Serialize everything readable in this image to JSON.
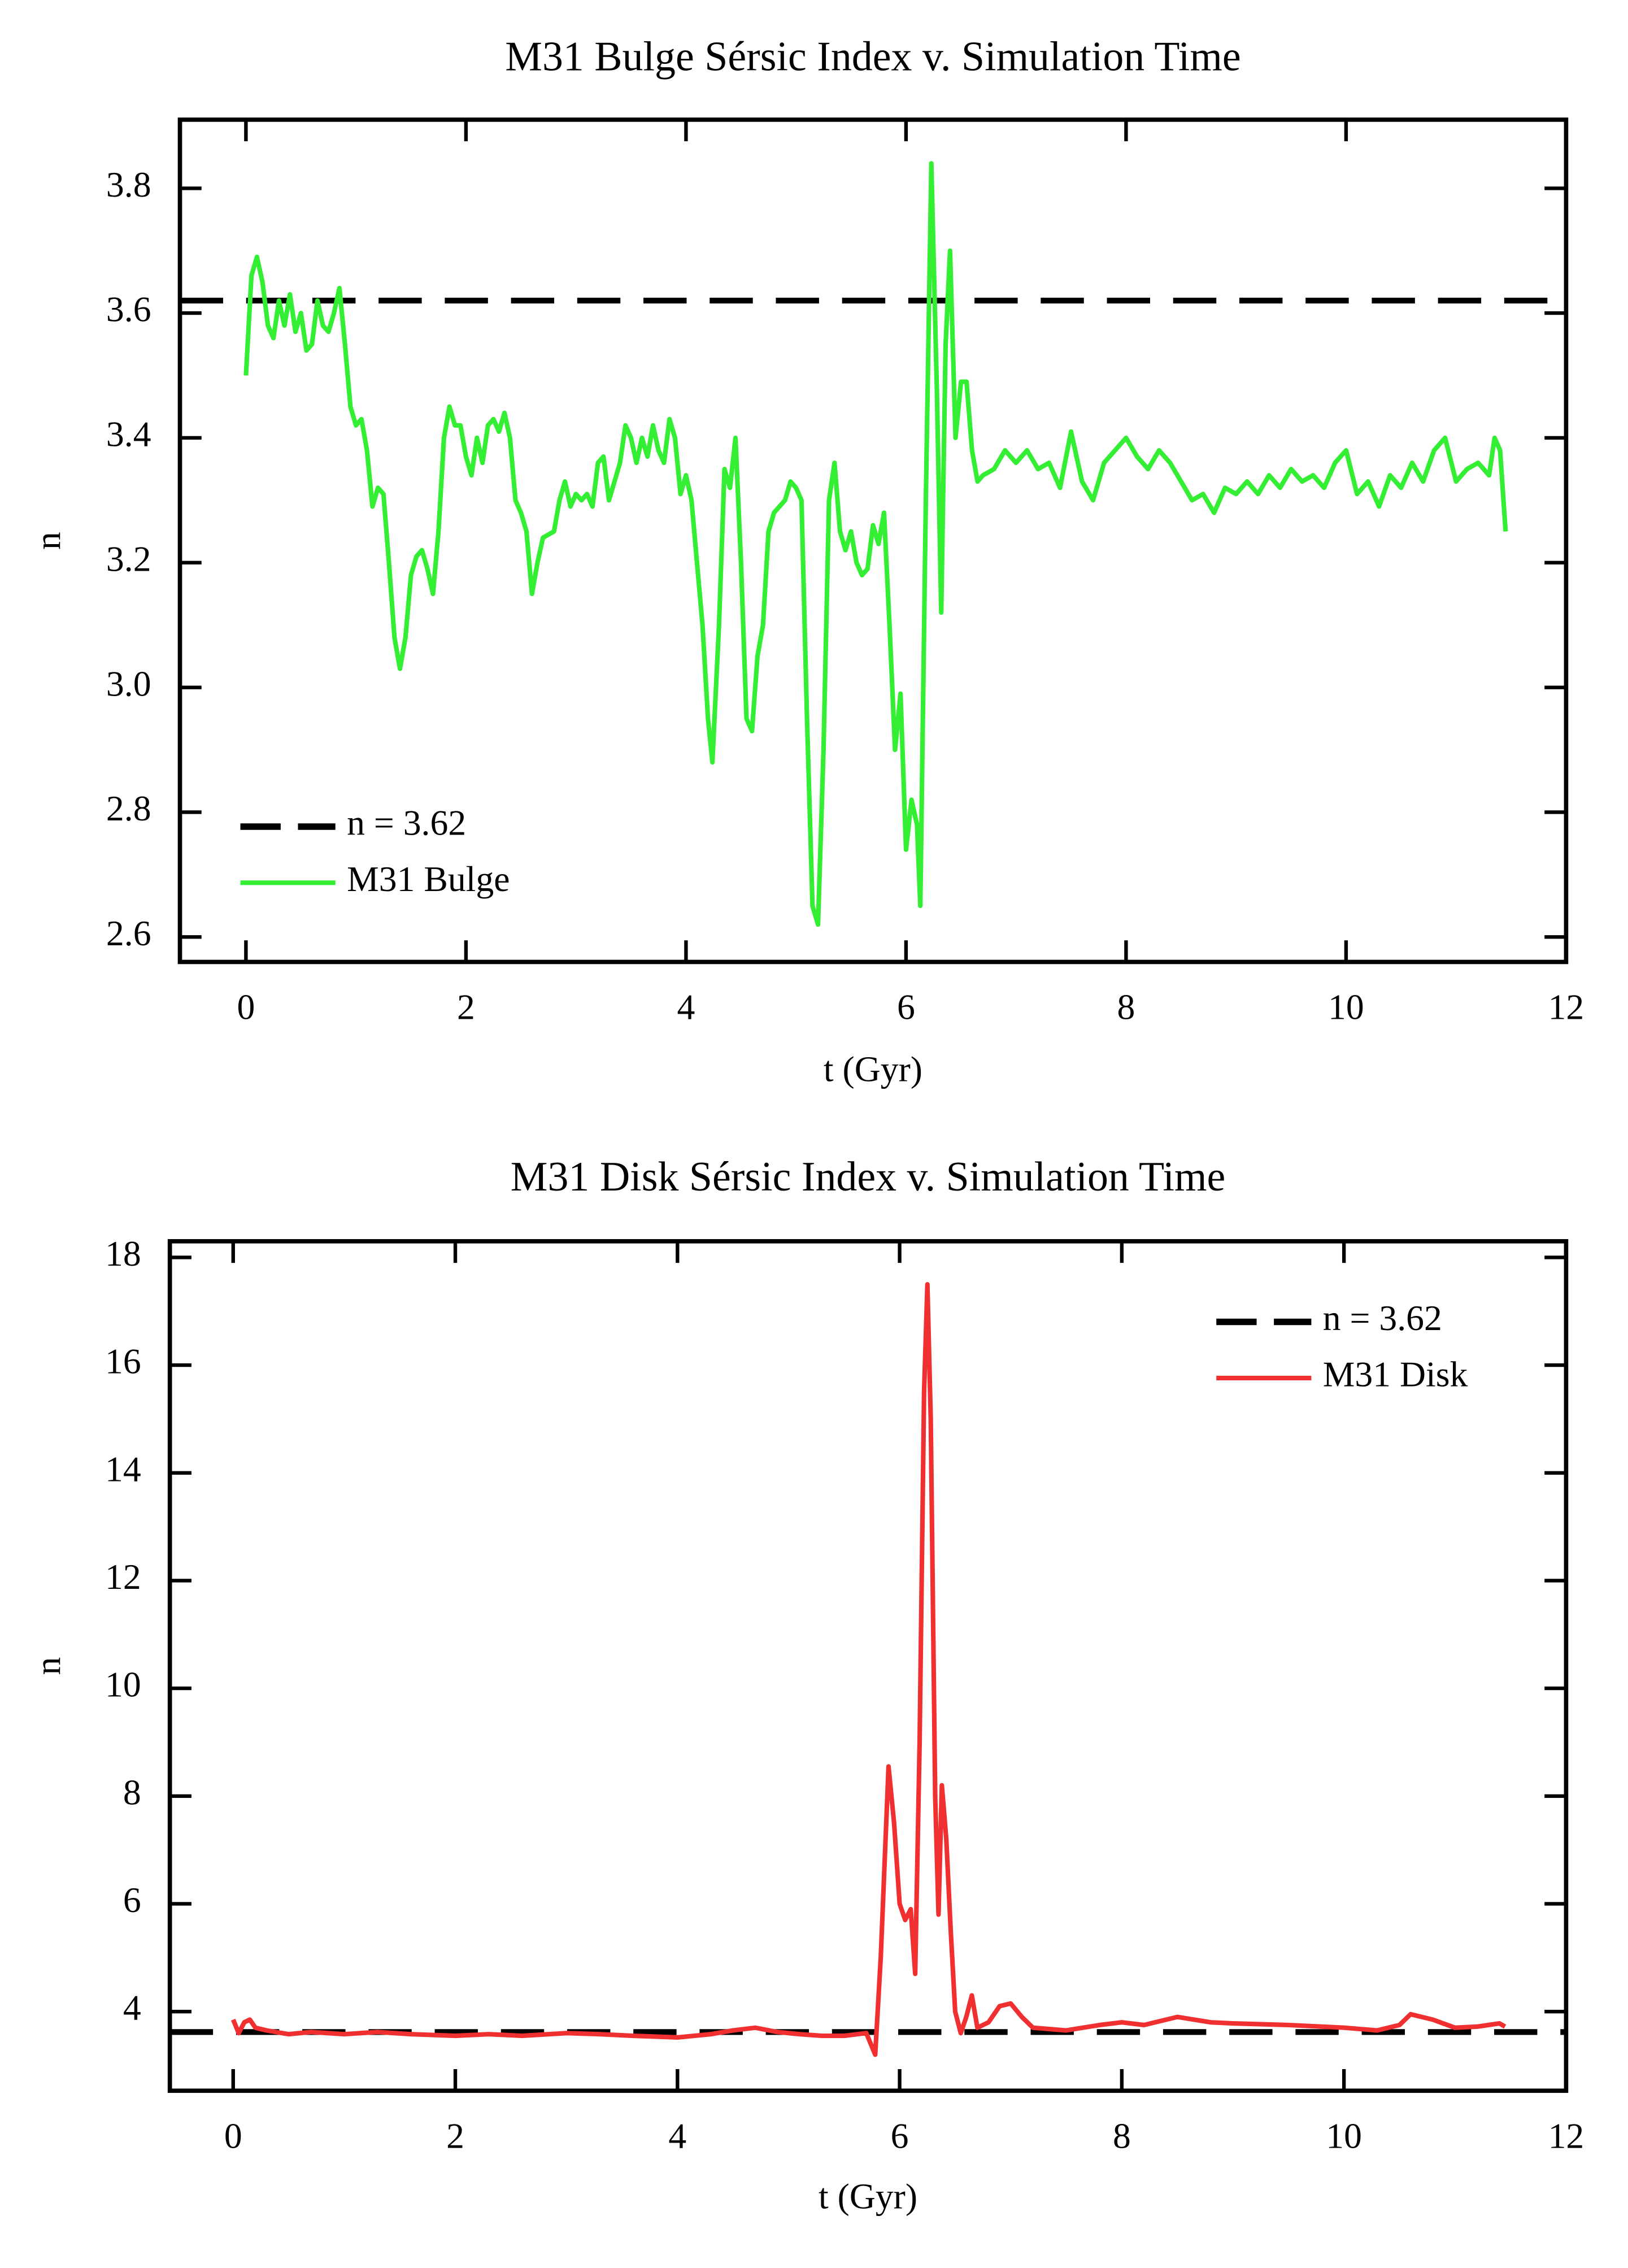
{
  "chart_data": [
    {
      "type": "line",
      "title": "M31 Bulge Sérsic Index v. Simulation Time",
      "xlabel": "t (Gyr)",
      "ylabel": "n",
      "xlim": [
        -0.6,
        12
      ],
      "ylim": [
        2.56,
        3.91
      ],
      "xticks": [
        0,
        2,
        4,
        6,
        8,
        10,
        12
      ],
      "yticks": [
        2.6,
        2.8,
        {
          "value": 3,
          "label": "3.0"
        },
        3.2,
        3.4,
        3.6,
        3.8
      ],
      "legend": "lower left",
      "hlines": [
        {
          "name": "n = 3.62",
          "value": 3.62,
          "color": "#000000",
          "dashed": true
        }
      ],
      "x": [
        0,
        0.05,
        0.1,
        0.15,
        0.2,
        0.25,
        0.3,
        0.35,
        0.4,
        0.45,
        0.5,
        0.55,
        0.6,
        0.65,
        0.7,
        0.75,
        0.8,
        0.85,
        0.9,
        0.95,
        1.0,
        1.05,
        1.1,
        1.15,
        1.2,
        1.25,
        1.3,
        1.35,
        1.4,
        1.45,
        1.5,
        1.55,
        1.6,
        1.65,
        1.7,
        1.75,
        1.8,
        1.85,
        1.9,
        1.95,
        2.0,
        2.05,
        2.1,
        2.15,
        2.2,
        2.25,
        2.3,
        2.35,
        2.4,
        2.45,
        2.5,
        2.55,
        2.6,
        2.65,
        2.7,
        2.8,
        2.85,
        2.9,
        2.95,
        3.0,
        3.05,
        3.1,
        3.15,
        3.2,
        3.25,
        3.3,
        3.35,
        3.4,
        3.45,
        3.5,
        3.55,
        3.6,
        3.65,
        3.7,
        3.75,
        3.8,
        3.85,
        3.9,
        3.95,
        4.0,
        4.05,
        4.1,
        4.15,
        4.2,
        4.24,
        4.3,
        4.35,
        4.4,
        4.45,
        4.5,
        4.55,
        4.6,
        4.65,
        4.7,
        4.75,
        4.8,
        4.9,
        4.95,
        5.0,
        5.05,
        5.1,
        5.15,
        5.2,
        5.25,
        5.3,
        5.35,
        5.4,
        5.45,
        5.5,
        5.55,
        5.6,
        5.65,
        5.7,
        5.75,
        5.8,
        5.85,
        5.9,
        5.95,
        6.0,
        6.05,
        6.1,
        6.13,
        6.18,
        6.23,
        6.28,
        6.32,
        6.36,
        6.4,
        6.45,
        6.5,
        6.55,
        6.6,
        6.65,
        6.7,
        6.8,
        6.9,
        7.0,
        7.1,
        7.2,
        7.3,
        7.4,
        7.5,
        7.6,
        7.7,
        7.8,
        7.9,
        8.0,
        8.1,
        8.2,
        8.3,
        8.4,
        8.5,
        8.6,
        8.7,
        8.8,
        8.9,
        9.0,
        9.1,
        9.2,
        9.3,
        9.4,
        9.5,
        9.6,
        9.7,
        9.8,
        9.9,
        10.0,
        10.1,
        10.2,
        10.3,
        10.4,
        10.5,
        10.6,
        10.7,
        10.8,
        10.9,
        11.0,
        11.1,
        11.2,
        11.3,
        11.35,
        11.4,
        11.45
      ],
      "series": [
        {
          "name": "M31 Bulge",
          "color": "#33ee33",
          "values": [
            3.5,
            3.66,
            3.69,
            3.65,
            3.58,
            3.56,
            3.62,
            3.58,
            3.63,
            3.57,
            3.6,
            3.54,
            3.55,
            3.62,
            3.58,
            3.57,
            3.6,
            3.64,
            3.55,
            3.45,
            3.42,
            3.43,
            3.38,
            3.29,
            3.32,
            3.31,
            3.2,
            3.08,
            3.03,
            3.08,
            3.18,
            3.21,
            3.22,
            3.19,
            3.15,
            3.25,
            3.4,
            3.45,
            3.42,
            3.42,
            3.37,
            3.34,
            3.4,
            3.36,
            3.42,
            3.43,
            3.41,
            3.44,
            3.4,
            3.3,
            3.28,
            3.25,
            3.15,
            3.2,
            3.24,
            3.25,
            3.3,
            3.33,
            3.29,
            3.31,
            3.3,
            3.31,
            3.29,
            3.36,
            3.37,
            3.3,
            3.33,
            3.36,
            3.42,
            3.4,
            3.36,
            3.4,
            3.37,
            3.42,
            3.38,
            3.36,
            3.43,
            3.4,
            3.31,
            3.34,
            3.3,
            3.2,
            3.1,
            2.95,
            2.88,
            3.1,
            3.35,
            3.32,
            3.4,
            3.2,
            2.95,
            2.93,
            3.05,
            3.1,
            3.25,
            3.28,
            3.3,
            3.33,
            3.32,
            3.3,
            2.95,
            2.65,
            2.62,
            2.9,
            3.3,
            3.36,
            3.25,
            3.22,
            3.25,
            3.2,
            3.18,
            3.19,
            3.26,
            3.23,
            3.28,
            3.1,
            2.9,
            2.99,
            2.74,
            2.82,
            2.78,
            2.65,
            3.3,
            3.84,
            3.48,
            3.12,
            3.55,
            3.7,
            3.4,
            3.49,
            3.49,
            3.38,
            3.33,
            3.34,
            3.35,
            3.38,
            3.36,
            3.38,
            3.35,
            3.36,
            3.32,
            3.41,
            3.33,
            3.3,
            3.36,
            3.38,
            3.4,
            3.37,
            3.35,
            3.38,
            3.36,
            3.33,
            3.3,
            3.31,
            3.28,
            3.32,
            3.31,
            3.33,
            3.31,
            3.34,
            3.32,
            3.35,
            3.33,
            3.34,
            3.32,
            3.36,
            3.38,
            3.31,
            3.33,
            3.29,
            3.34,
            3.32,
            3.36,
            3.33,
            3.38,
            3.4,
            3.33,
            3.35,
            3.36,
            3.34,
            3.4,
            3.38,
            3.25
          ]
        }
      ]
    },
    {
      "type": "line",
      "title": "M31 Disk Sérsic Index v. Simulation Time",
      "xlabel": "t (Gyr)",
      "ylabel": "n",
      "xlim": [
        -0.57,
        12
      ],
      "ylim": [
        2.53,
        18.3
      ],
      "xticks": [
        0,
        2,
        4,
        6,
        8,
        10,
        12
      ],
      "yticks": [
        4,
        6,
        8,
        10,
        12,
        14,
        16,
        18
      ],
      "legend": "upper right",
      "hlines": [
        {
          "name": "n = 3.62",
          "value": 3.62,
          "color": "#000000",
          "dashed": true
        }
      ],
      "x": [
        0,
        0.05,
        0.1,
        0.15,
        0.2,
        0.3,
        0.5,
        0.7,
        1.0,
        1.3,
        1.6,
        2.0,
        2.3,
        2.6,
        3.0,
        3.3,
        3.6,
        4.0,
        4.3,
        4.5,
        4.7,
        4.9,
        5.1,
        5.3,
        5.5,
        5.7,
        5.78,
        5.83,
        5.9,
        5.95,
        6.0,
        6.05,
        6.1,
        6.14,
        6.18,
        6.22,
        6.25,
        6.28,
        6.32,
        6.35,
        6.38,
        6.42,
        6.46,
        6.5,
        6.55,
        6.6,
        6.65,
        6.7,
        6.8,
        6.9,
        7.0,
        7.1,
        7.2,
        7.5,
        7.8,
        8.0,
        8.2,
        8.5,
        8.8,
        9.0,
        9.5,
        10.0,
        10.3,
        10.5,
        10.6,
        10.8,
        11.0,
        11.2,
        11.4,
        11.45
      ],
      "series": [
        {
          "name": "M31 Disk",
          "color": "#f03030",
          "values": [
            3.85,
            3.6,
            3.8,
            3.85,
            3.7,
            3.65,
            3.58,
            3.62,
            3.58,
            3.62,
            3.58,
            3.55,
            3.58,
            3.55,
            3.6,
            3.58,
            3.55,
            3.52,
            3.58,
            3.65,
            3.7,
            3.62,
            3.58,
            3.55,
            3.55,
            3.6,
            3.2,
            5.0,
            8.55,
            7.5,
            6.0,
            5.7,
            5.9,
            4.7,
            9.0,
            15.5,
            17.5,
            15.0,
            8.0,
            5.8,
            8.2,
            7.2,
            5.5,
            4.0,
            3.6,
            3.9,
            4.3,
            3.7,
            3.8,
            4.1,
            4.15,
            3.9,
            3.7,
            3.65,
            3.75,
            3.8,
            3.75,
            3.9,
            3.8,
            3.78,
            3.75,
            3.7,
            3.65,
            3.75,
            3.95,
            3.85,
            3.7,
            3.72,
            3.78,
            3.72
          ]
        }
      ]
    }
  ]
}
